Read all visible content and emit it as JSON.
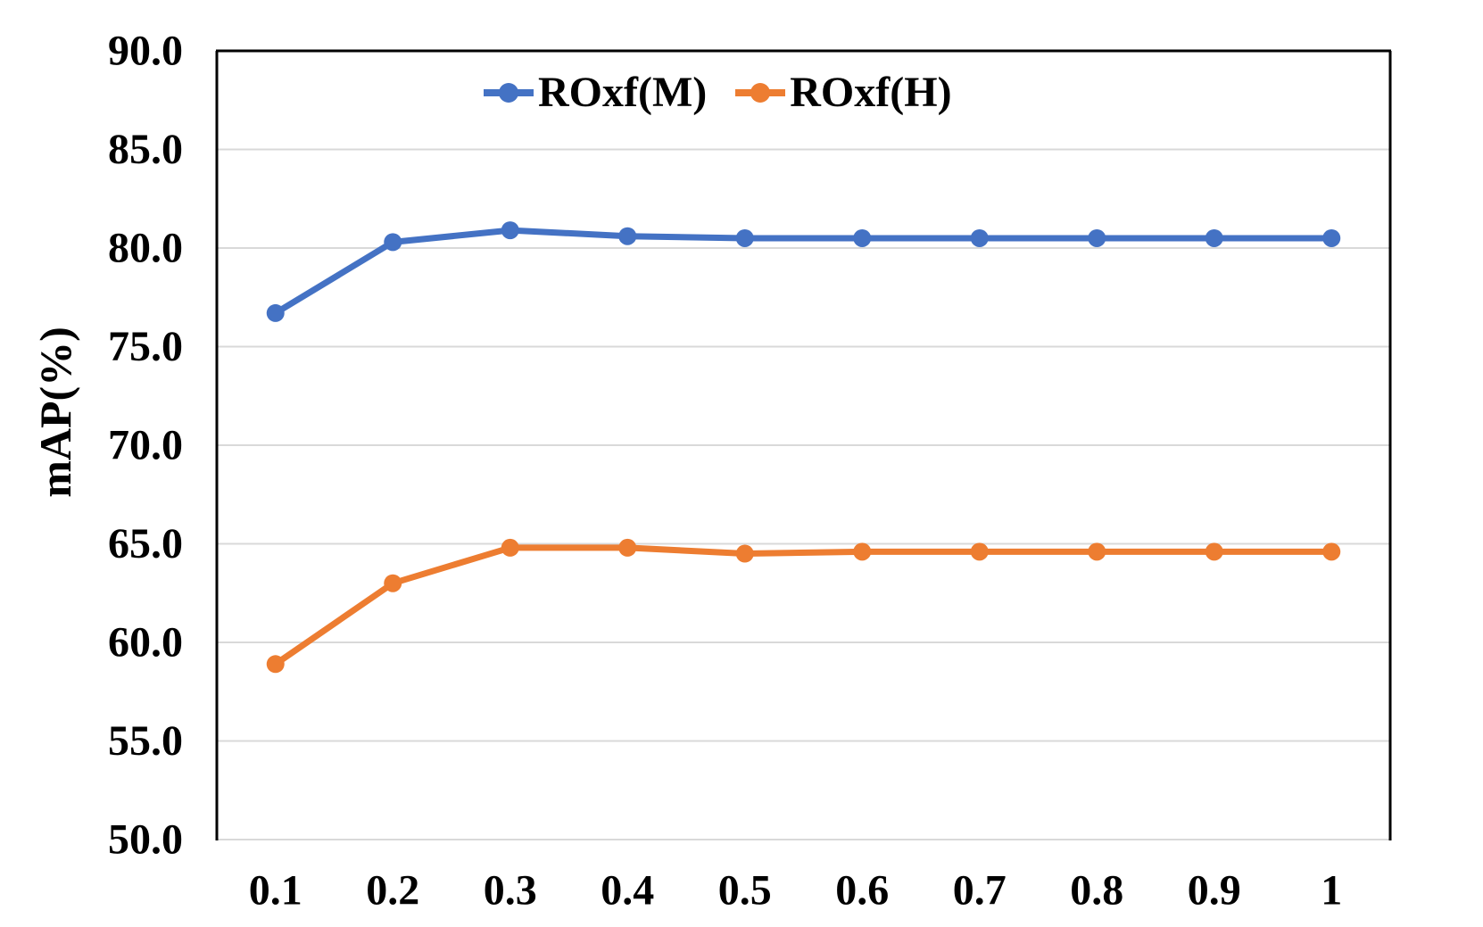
{
  "figure": {
    "background_color": "#FFFFFF"
  },
  "chart_data": {
    "type": "line",
    "title": "",
    "xlabel": "",
    "ylabel": "mAP(%)",
    "x_tick_labels": [
      "0.1",
      "0.2",
      "0.3",
      "0.4",
      "0.5",
      "0.6",
      "0.7",
      "0.8",
      "0.9",
      "1"
    ],
    "x": [
      0.1,
      0.2,
      0.3,
      0.4,
      0.5,
      0.6,
      0.7,
      0.8,
      0.9,
      1.0
    ],
    "ylim": [
      50.0,
      90.0
    ],
    "ytick_step": 5.0,
    "ytick_labels": [
      "50.0",
      "55.0",
      "60.0",
      "65.0",
      "70.0",
      "75.0",
      "80.0",
      "85.0",
      "90.0"
    ],
    "grid": "horizontal",
    "gridline_color": "#D9D9D9",
    "axis_color": "#000000",
    "legend_position": "top-center-inside",
    "series": [
      {
        "name": "ROxf(M)",
        "color": "#4472C4",
        "values": [
          76.7,
          80.3,
          80.9,
          80.6,
          80.5,
          80.5,
          80.5,
          80.5,
          80.5,
          80.5
        ]
      },
      {
        "name": "ROxf(H)",
        "color": "#ED7D31",
        "values": [
          58.9,
          63.0,
          64.8,
          64.8,
          64.5,
          64.6,
          64.6,
          64.6,
          64.6,
          64.6
        ]
      }
    ]
  }
}
